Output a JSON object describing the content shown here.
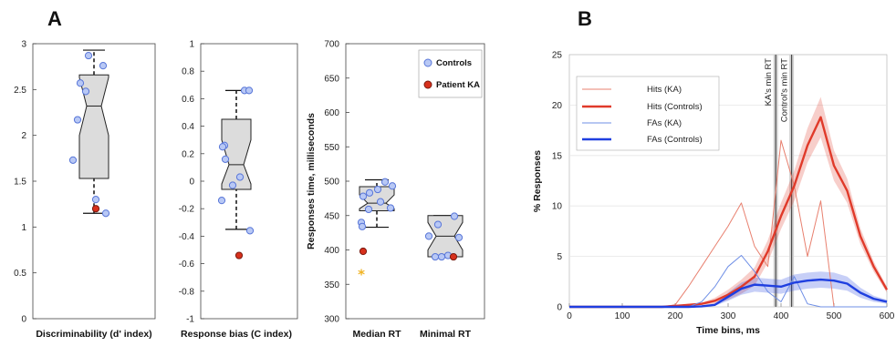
{
  "panels": {
    "a": "A",
    "b": "B"
  },
  "chart_data": [
    {
      "type": "box",
      "panel": "A",
      "xlabel": "Discriminability (d' index)",
      "ylim": [
        0,
        3
      ],
      "yticks": [
        "0",
        "0.5",
        "1",
        "1.5",
        "2",
        "2.5",
        "3"
      ],
      "box": {
        "whisker_low": 1.15,
        "q1": 1.53,
        "median": 2.32,
        "q3": 2.66,
        "whisker_high": 2.93,
        "notch_low": 2.0,
        "notch_high": 2.63
      },
      "controls": [
        2.87,
        2.76,
        2.57,
        2.48,
        2.17,
        1.73,
        1.3,
        1.15
      ],
      "patient": 1.2
    },
    {
      "type": "box",
      "panel": "A",
      "xlabel": "Response bias (C index)",
      "ylim": [
        -1,
        1
      ],
      "yticks": [
        "-1",
        "-0.8",
        "-0.6",
        "-0.4",
        "-0.2",
        "0",
        "0.2",
        "0.4",
        "0.6",
        "0.8",
        "1"
      ],
      "box": {
        "whisker_low": -0.35,
        "q1": -0.06,
        "median": 0.12,
        "q3": 0.45,
        "whisker_high": 0.66,
        "notch_low": -0.02,
        "notch_high": 0.3
      },
      "controls": [
        0.66,
        0.66,
        0.26,
        0.25,
        0.16,
        0.03,
        -0.03,
        -0.14,
        -0.36
      ],
      "patient": -0.54
    },
    {
      "type": "box",
      "panel": "A",
      "categories": [
        "Median RT",
        "Minimal RT"
      ],
      "ylabel": "Responses time, milliseconds",
      "ylim": [
        300,
        700
      ],
      "yticks": [
        "300",
        "350",
        "400",
        "450",
        "500",
        "550",
        "600",
        "650",
        "700"
      ],
      "legend": [
        "Controls",
        "Patient KA"
      ],
      "boxes": [
        {
          "whisker_low": 433,
          "q1": 457,
          "median": 468,
          "q3": 492,
          "whisker_high": 502,
          "notch_low": 460,
          "notch_high": 480
        },
        {
          "whisker_low": 390,
          "q1": 390,
          "median": 420,
          "q3": 450,
          "whisker_high": 450,
          "notch_low": 400,
          "notch_high": 440
        }
      ],
      "controls": [
        [
          499,
          493,
          488,
          483,
          478,
          470,
          461,
          459,
          440,
          434
        ],
        [
          449,
          437,
          420,
          418,
          392,
          390,
          390
        ]
      ],
      "patient": [
        398,
        390
      ],
      "outlier": 364
    },
    {
      "type": "line",
      "panel": "B",
      "xlabel": "Time bins, ms",
      "ylabel": "% Responses",
      "xlim": [
        0,
        600
      ],
      "ylim": [
        0,
        25
      ],
      "xticks": [
        "0",
        "100",
        "200",
        "300",
        "400",
        "500",
        "600"
      ],
      "yticks": [
        "0",
        "5",
        "10",
        "15",
        "20",
        "25"
      ],
      "legend_position": "top-left",
      "x": [
        0,
        25,
        50,
        75,
        100,
        125,
        150,
        175,
        200,
        225,
        250,
        275,
        300,
        325,
        350,
        375,
        400,
        425,
        450,
        475,
        500,
        525,
        550,
        575,
        600
      ],
      "series": [
        {
          "name": "Hits (KA)",
          "color": "#e8806f",
          "values": [
            0,
            0,
            0,
            0,
            0,
            0,
            0,
            0,
            0.2,
            2,
            4,
            6,
            8,
            10.3,
            6,
            4,
            16.5,
            12,
            5,
            10.5,
            0,
            0,
            0,
            0,
            0
          ]
        },
        {
          "name": "Hits (Controls)",
          "color": "#e03a2a",
          "values": [
            0,
            0,
            0,
            0,
            0,
            0,
            0,
            0,
            0.1,
            0.2,
            0.3,
            0.6,
            1.2,
            2,
            3,
            5.5,
            9,
            12,
            16,
            18.8,
            14,
            11.5,
            7,
            4,
            1.7
          ]
        },
        {
          "name": "FAs (KA)",
          "color": "#6f8fe6",
          "values": [
            0,
            0,
            0,
            0,
            0,
            0,
            0,
            0,
            0,
            0,
            0.5,
            2,
            4,
            5.1,
            3.5,
            1.5,
            0.5,
            3,
            0.3,
            0,
            0,
            0,
            0,
            0,
            0
          ]
        },
        {
          "name": "FAs (Controls)",
          "color": "#1f3fe0",
          "values": [
            0,
            0,
            0,
            0,
            0,
            0,
            0,
            0,
            0,
            0,
            0.05,
            0.2,
            1,
            1.8,
            2.2,
            2.1,
            2,
            2.4,
            2.6,
            2.7,
            2.6,
            2.3,
            1.4,
            0.8,
            0.5
          ]
        }
      ],
      "hits_controls_error": [
        0,
        0,
        0,
        0,
        0,
        0,
        0,
        0,
        0,
        0.1,
        0.1,
        0.3,
        0.5,
        0.7,
        0.9,
        1.1,
        1.3,
        1.5,
        1.7,
        2.0,
        1.5,
        1.2,
        0.8,
        0.5,
        0.3
      ],
      "fas_controls_error": [
        0,
        0,
        0,
        0,
        0,
        0,
        0,
        0,
        0,
        0,
        0,
        0.1,
        0.4,
        0.6,
        0.7,
        0.7,
        0.7,
        0.8,
        0.8,
        0.8,
        0.8,
        0.7,
        0.5,
        0.3,
        0.2
      ],
      "vlines": [
        {
          "label": "KA's min RT",
          "x": 390
        },
        {
          "label": "Control's min RT",
          "x": 420
        }
      ]
    }
  ]
}
